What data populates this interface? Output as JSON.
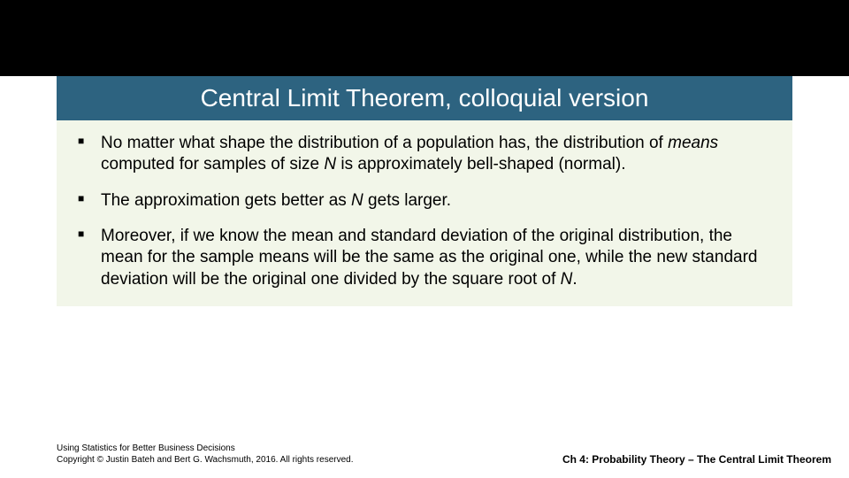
{
  "colors": {
    "header_bg": "#2d6380",
    "content_bg": "#f2f6e9",
    "page_bg": "#ffffff",
    "top_bar_bg": "#000000",
    "text": "#000000",
    "header_text": "#ffffff"
  },
  "typography": {
    "header_title_fontsize": 28,
    "body_fontsize": 19,
    "footer_left_fontsize": 10,
    "footer_right_fontsize": 12
  },
  "header": {
    "title": "Central Limit Theorem, colloquial version"
  },
  "bullets": [
    {
      "pre": "No matter what shape the distribution of a population has, the distribution of ",
      "it1": "means",
      "mid": " computed for samples of size ",
      "it2": "N",
      "post": " is approximately bell-shaped (normal)."
    },
    {
      "pre": "The approximation gets better as ",
      "it1": "N",
      "mid": " gets larger.",
      "it2": "",
      "post": ""
    },
    {
      "pre": "Moreover, if we know the mean and standard deviation of the original distribution, the mean for the sample means will be the same as the original one, while the new standard deviation will be the original one divided by the square root of ",
      "it1": "N",
      "mid": ".",
      "it2": "",
      "post": ""
    }
  ],
  "footer": {
    "left_line1": "Using Statistics for Better Business Decisions",
    "left_line2": "Copyright © Justin Bateh and Bert G. Wachsmuth, 2016. All rights reserved.",
    "right": "Ch 4: Probability Theory – The Central Limit Theorem"
  }
}
